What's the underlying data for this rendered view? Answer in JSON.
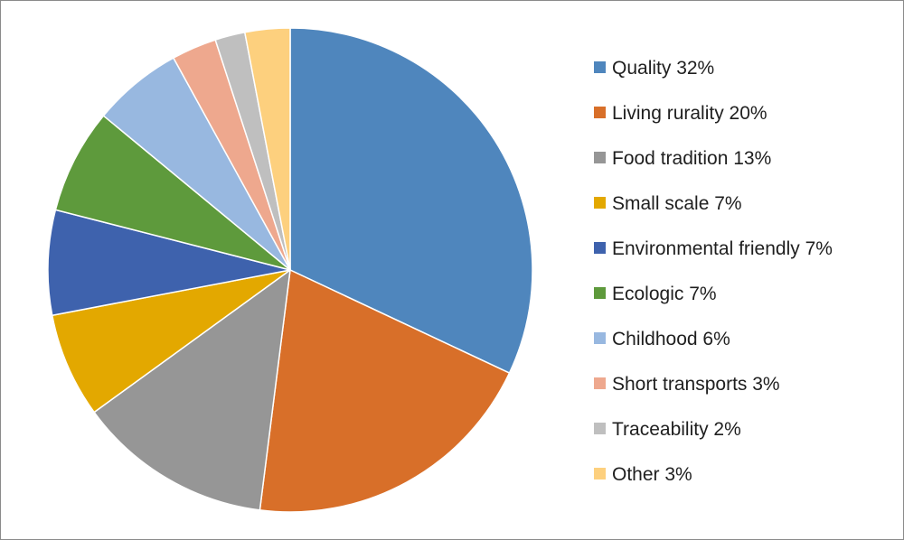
{
  "chart_data": {
    "type": "pie",
    "title": "",
    "legend_position": "right",
    "slices": [
      {
        "label": "Quality 32%",
        "value": 32,
        "color": "#4f86bd"
      },
      {
        "label": "Living rurality 20%",
        "value": 20,
        "color": "#d86f29"
      },
      {
        "label": "Food tradition  13%",
        "value": 13,
        "color": "#969696"
      },
      {
        "label": "Small scale 7%",
        "value": 7,
        "color": "#e3a800"
      },
      {
        "label": "Environmental friendly 7%",
        "value": 7,
        "color": "#3e62ad"
      },
      {
        "label": "Ecologic 7%",
        "value": 7,
        "color": "#5e9a3c"
      },
      {
        "label": "Childhood 6%",
        "value": 6,
        "color": "#98b8e0"
      },
      {
        "label": "Short transports  3%",
        "value": 3,
        "color": "#eea88e"
      },
      {
        "label": "Traceability 2%",
        "value": 2,
        "color": "#bfbfbf"
      },
      {
        "label": "Other 3%",
        "value": 3,
        "color": "#fdd07e"
      }
    ]
  }
}
